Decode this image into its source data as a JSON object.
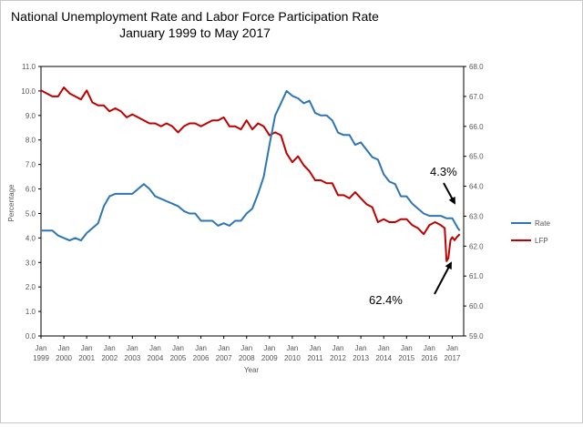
{
  "chart_data": {
    "type": "line",
    "title": "National Unemployment Rate and Labor Force Participation Rate",
    "subtitle": "January 1999 to May 2017",
    "xlabel": "Year",
    "ylabel": "Percentage",
    "y_left_lim": [
      0,
      11
    ],
    "y_right_lim": [
      59,
      68
    ],
    "y_left_ticks": [
      "0.0",
      "1.0",
      "2.0",
      "3.0",
      "4.0",
      "5.0",
      "6.0",
      "7.0",
      "8.0",
      "9.0",
      "10.0",
      "11.0"
    ],
    "y_right_ticks": [
      "59.0",
      "60.0",
      "61.0",
      "62.0",
      "63.0",
      "64.0",
      "65.0",
      "66.0",
      "67.0",
      "68.0"
    ],
    "x_ticks": [
      {
        "month": "Jan",
        "year": "1999"
      },
      {
        "month": "Jan",
        "year": "2000"
      },
      {
        "month": "Jan",
        "year": "2001"
      },
      {
        "month": "Jan",
        "year": "2002"
      },
      {
        "month": "Jan",
        "year": "2003"
      },
      {
        "month": "Jan",
        "year": "2004"
      },
      {
        "month": "Jan",
        "year": "2005"
      },
      {
        "month": "Jan",
        "year": "2006"
      },
      {
        "month": "Jan",
        "year": "2007"
      },
      {
        "month": "Jan",
        "year": "2008"
      },
      {
        "month": "Jan",
        "year": "2009"
      },
      {
        "month": "Jan",
        "year": "2010"
      },
      {
        "month": "Jan",
        "year": "2011"
      },
      {
        "month": "Jan",
        "year": "2012"
      },
      {
        "month": "Jan",
        "year": "2013"
      },
      {
        "month": "Jan",
        "year": "2014"
      },
      {
        "month": "Jan",
        "year": "2015"
      },
      {
        "month": "Jan",
        "year": "2016"
      },
      {
        "month": "Jan",
        "year": "2017"
      }
    ],
    "series": [
      {
        "name": "Rate",
        "axis": "left",
        "color": "#2e75b6",
        "points": [
          [
            1999.0,
            4.3
          ],
          [
            1999.25,
            4.3
          ],
          [
            1999.5,
            4.3
          ],
          [
            1999.75,
            4.1
          ],
          [
            2000.0,
            4.0
          ],
          [
            2000.25,
            3.9
          ],
          [
            2000.5,
            4.0
          ],
          [
            2000.75,
            3.9
          ],
          [
            2001.0,
            4.2
          ],
          [
            2001.25,
            4.4
          ],
          [
            2001.5,
            4.6
          ],
          [
            2001.75,
            5.3
          ],
          [
            2002.0,
            5.7
          ],
          [
            2002.25,
            5.8
          ],
          [
            2002.5,
            5.8
          ],
          [
            2002.75,
            5.8
          ],
          [
            2003.0,
            5.8
          ],
          [
            2003.25,
            6.0
          ],
          [
            2003.5,
            6.2
          ],
          [
            2003.75,
            6.0
          ],
          [
            2004.0,
            5.7
          ],
          [
            2004.25,
            5.6
          ],
          [
            2004.5,
            5.5
          ],
          [
            2004.75,
            5.4
          ],
          [
            2005.0,
            5.3
          ],
          [
            2005.25,
            5.1
          ],
          [
            2005.5,
            5.0
          ],
          [
            2005.75,
            5.0
          ],
          [
            2006.0,
            4.7
          ],
          [
            2006.25,
            4.7
          ],
          [
            2006.5,
            4.7
          ],
          [
            2006.75,
            4.5
          ],
          [
            2007.0,
            4.6
          ],
          [
            2007.25,
            4.5
          ],
          [
            2007.5,
            4.7
          ],
          [
            2007.75,
            4.7
          ],
          [
            2008.0,
            5.0
          ],
          [
            2008.25,
            5.2
          ],
          [
            2008.5,
            5.8
          ],
          [
            2008.75,
            6.5
          ],
          [
            2009.0,
            7.8
          ],
          [
            2009.25,
            9.0
          ],
          [
            2009.5,
            9.5
          ],
          [
            2009.75,
            10.0
          ],
          [
            2010.0,
            9.8
          ],
          [
            2010.25,
            9.7
          ],
          [
            2010.5,
            9.5
          ],
          [
            2010.75,
            9.6
          ],
          [
            2011.0,
            9.1
          ],
          [
            2011.25,
            9.0
          ],
          [
            2011.5,
            9.0
          ],
          [
            2011.75,
            8.8
          ],
          [
            2012.0,
            8.3
          ],
          [
            2012.25,
            8.2
          ],
          [
            2012.5,
            8.2
          ],
          [
            2012.75,
            7.8
          ],
          [
            2013.0,
            7.9
          ],
          [
            2013.25,
            7.6
          ],
          [
            2013.5,
            7.3
          ],
          [
            2013.75,
            7.2
          ],
          [
            2014.0,
            6.6
          ],
          [
            2014.25,
            6.3
          ],
          [
            2014.5,
            6.2
          ],
          [
            2014.75,
            5.7
          ],
          [
            2015.0,
            5.7
          ],
          [
            2015.25,
            5.4
          ],
          [
            2015.5,
            5.2
          ],
          [
            2015.75,
            5.0
          ],
          [
            2016.0,
            4.9
          ],
          [
            2016.25,
            4.9
          ],
          [
            2016.5,
            4.9
          ],
          [
            2016.75,
            4.8
          ],
          [
            2017.0,
            4.8
          ],
          [
            2017.25,
            4.4
          ],
          [
            2017.33,
            4.3
          ]
        ]
      },
      {
        "name": "LFP",
        "axis": "right",
        "color": "#c00000",
        "points": [
          [
            1999.0,
            67.2
          ],
          [
            1999.25,
            67.1
          ],
          [
            1999.5,
            67.0
          ],
          [
            1999.75,
            67.0
          ],
          [
            2000.0,
            67.3
          ],
          [
            2000.25,
            67.1
          ],
          [
            2000.5,
            67.0
          ],
          [
            2000.75,
            66.9
          ],
          [
            2001.0,
            67.2
          ],
          [
            2001.25,
            66.8
          ],
          [
            2001.5,
            66.7
          ],
          [
            2001.75,
            66.7
          ],
          [
            2002.0,
            66.5
          ],
          [
            2002.25,
            66.6
          ],
          [
            2002.5,
            66.5
          ],
          [
            2002.75,
            66.3
          ],
          [
            2003.0,
            66.4
          ],
          [
            2003.25,
            66.3
          ],
          [
            2003.5,
            66.2
          ],
          [
            2003.75,
            66.1
          ],
          [
            2004.0,
            66.1
          ],
          [
            2004.25,
            66.0
          ],
          [
            2004.5,
            66.1
          ],
          [
            2004.75,
            66.0
          ],
          [
            2005.0,
            65.8
          ],
          [
            2005.25,
            66.0
          ],
          [
            2005.5,
            66.1
          ],
          [
            2005.75,
            66.1
          ],
          [
            2006.0,
            66.0
          ],
          [
            2006.25,
            66.1
          ],
          [
            2006.5,
            66.2
          ],
          [
            2006.75,
            66.2
          ],
          [
            2007.0,
            66.3
          ],
          [
            2007.25,
            66.0
          ],
          [
            2007.5,
            66.0
          ],
          [
            2007.75,
            65.9
          ],
          [
            2008.0,
            66.2
          ],
          [
            2008.25,
            65.9
          ],
          [
            2008.5,
            66.1
          ],
          [
            2008.75,
            66.0
          ],
          [
            2009.0,
            65.7
          ],
          [
            2009.25,
            65.8
          ],
          [
            2009.5,
            65.7
          ],
          [
            2009.75,
            65.1
          ],
          [
            2010.0,
            64.8
          ],
          [
            2010.25,
            65.0
          ],
          [
            2010.5,
            64.7
          ],
          [
            2010.75,
            64.5
          ],
          [
            2011.0,
            64.2
          ],
          [
            2011.25,
            64.2
          ],
          [
            2011.5,
            64.1
          ],
          [
            2011.75,
            64.1
          ],
          [
            2012.0,
            63.7
          ],
          [
            2012.25,
            63.7
          ],
          [
            2012.5,
            63.6
          ],
          [
            2012.75,
            63.8
          ],
          [
            2013.0,
            63.6
          ],
          [
            2013.25,
            63.4
          ],
          [
            2013.5,
            63.3
          ],
          [
            2013.75,
            62.8
          ],
          [
            2014.0,
            62.9
          ],
          [
            2014.25,
            62.8
          ],
          [
            2014.5,
            62.8
          ],
          [
            2014.75,
            62.9
          ],
          [
            2015.0,
            62.9
          ],
          [
            2015.25,
            62.7
          ],
          [
            2015.5,
            62.6
          ],
          [
            2015.75,
            62.4
          ],
          [
            2016.0,
            62.7
          ],
          [
            2016.25,
            62.8
          ],
          [
            2016.5,
            62.7
          ],
          [
            2016.67,
            62.6
          ],
          [
            2016.75,
            61.5
          ],
          [
            2016.83,
            61.6
          ],
          [
            2016.92,
            62.2
          ],
          [
            2017.0,
            62.3
          ],
          [
            2017.1,
            62.2
          ],
          [
            2017.2,
            62.3
          ],
          [
            2017.33,
            62.4
          ]
        ]
      }
    ],
    "legend": {
      "placement": "right",
      "entries": [
        "Rate",
        "LFP"
      ]
    },
    "annotations": [
      {
        "text": "4.3%",
        "target_series": "Rate",
        "target_x": 2017.33
      },
      {
        "text": "62.4%",
        "target_series": "LFP",
        "target_x": 2017.0
      }
    ],
    "grid": false
  }
}
